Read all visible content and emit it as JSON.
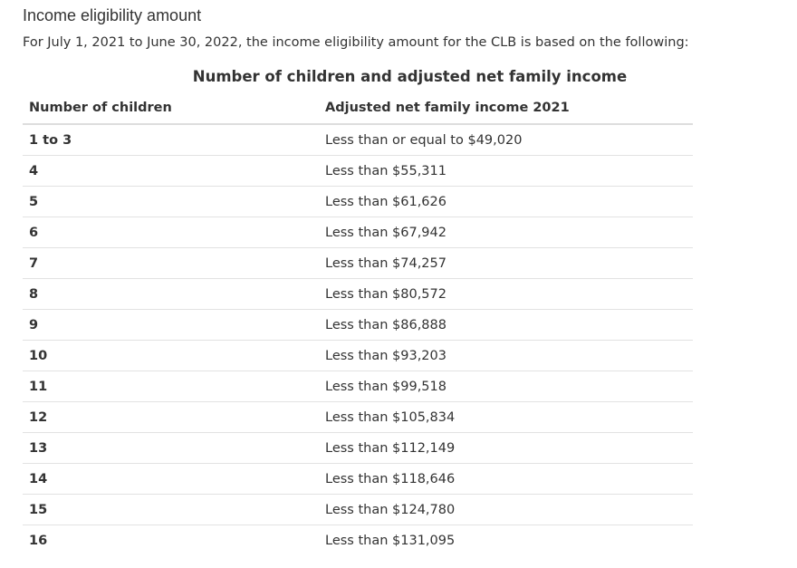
{
  "section": {
    "title": "Income eligibility amount",
    "intro": "For July 1, 2021 to June 30, 2022, the income eligibility amount for the CLB is based on the following:"
  },
  "table": {
    "caption": "Number of children and adjusted net family income",
    "headers": [
      "Number of children",
      "Adjusted net family income 2021"
    ],
    "rows": [
      {
        "children": "1 to 3",
        "income": "Less than or equal to $49,020"
      },
      {
        "children": "4",
        "income": "Less than $55,311"
      },
      {
        "children": "5",
        "income": "Less than $61,626"
      },
      {
        "children": "6",
        "income": "Less than $67,942"
      },
      {
        "children": "7",
        "income": "Less than $74,257"
      },
      {
        "children": "8",
        "income": "Less than $80,572"
      },
      {
        "children": "9",
        "income": "Less than $86,888"
      },
      {
        "children": "10",
        "income": "Less than $93,203"
      },
      {
        "children": "11",
        "income": "Less than $99,518"
      },
      {
        "children": "12",
        "income": "Less than $105,834"
      },
      {
        "children": "13",
        "income": "Less than $112,149"
      },
      {
        "children": "14",
        "income": "Less than $118,646"
      },
      {
        "children": "15",
        "income": "Less than $124,780"
      },
      {
        "children": "16",
        "income": "Less than $131,095"
      }
    ]
  }
}
